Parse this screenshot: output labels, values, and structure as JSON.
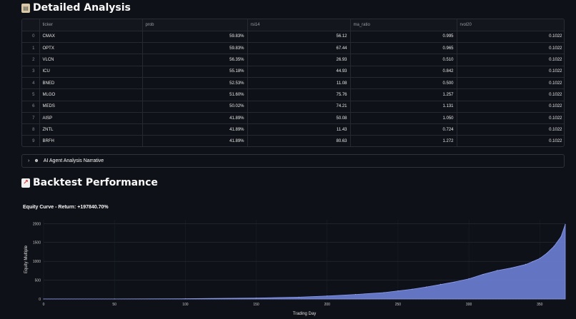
{
  "sections": {
    "analysis_title": "Detailed Analysis",
    "backtest_title": "Backtest Performance"
  },
  "table": {
    "columns": [
      "",
      "ticker",
      "prob",
      "rsi14",
      "ma_ratio",
      "rvol20"
    ],
    "rows": [
      [
        "0",
        "CMAX",
        "59.83%",
        "56.12",
        "0.995",
        "0.1022"
      ],
      [
        "1",
        "OPTX",
        "59.83%",
        "67.44",
        "0.965",
        "0.1022"
      ],
      [
        "2",
        "VLCN",
        "56.35%",
        "26.93",
        "0.510",
        "0.1022"
      ],
      [
        "3",
        "ICU",
        "55.18%",
        "44.93",
        "0.842",
        "0.1022"
      ],
      [
        "4",
        "BNED",
        "52.53%",
        "11.08",
        "0.500",
        "0.1022"
      ],
      [
        "5",
        "MLGO",
        "51.60%",
        "75.76",
        "1.257",
        "0.1022"
      ],
      [
        "6",
        "MEDS",
        "50.02%",
        "74.21",
        "1.131",
        "0.1022"
      ],
      [
        "7",
        "AISP",
        "41.89%",
        "50.08",
        "1.050",
        "0.1022"
      ],
      [
        "8",
        "ZNTL",
        "41.89%",
        "11.43",
        "0.724",
        "0.1022"
      ],
      [
        "9",
        "BRFH",
        "41.89%",
        "80.63",
        "1.272",
        "0.1022"
      ]
    ]
  },
  "expander": {
    "label": "AI Agent Analysis Narrative",
    "icon": "robot-icon"
  },
  "chart_data": {
    "type": "area",
    "title": "Equity Curve - Return: +197840.70%",
    "xlabel": "Trading Day",
    "ylabel": "Equity Multiple",
    "xlim": [
      0,
      368
    ],
    "ylim": [
      0,
      2100
    ],
    "xticks": [
      0,
      50,
      100,
      150,
      200,
      250,
      300,
      350
    ],
    "yticks": [
      0,
      500,
      1000,
      1500,
      2000
    ],
    "series": [
      {
        "color": "#6d7fd6",
        "x": [
          0,
          50,
          100,
          150,
          180,
          200,
          220,
          240,
          250,
          260,
          270,
          280,
          290,
          300,
          310,
          320,
          330,
          340,
          345,
          350,
          355,
          360,
          365,
          368
        ],
        "y": [
          1,
          3,
          8,
          25,
          50,
          80,
          120,
          170,
          215,
          260,
          320,
          390,
          450,
          540,
          650,
          760,
          820,
          920,
          990,
          1080,
          1210,
          1400,
          1650,
          1980
        ]
      }
    ]
  }
}
